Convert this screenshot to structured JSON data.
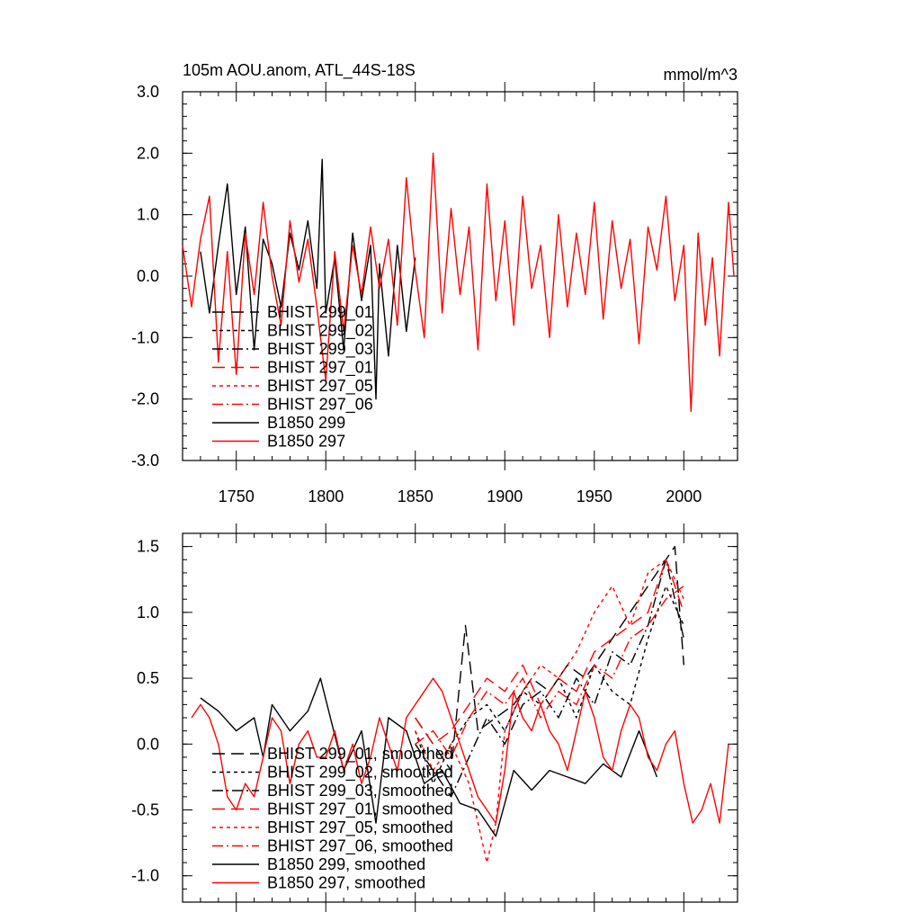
{
  "figure": {
    "title_left": "105m AOU.anom, ATL_44S-18S",
    "title_right": "mmol/m^3"
  },
  "styles": {
    "BHIST 299_01": {
      "color": "#000000",
      "dash": "long"
    },
    "BHIST 299_02": {
      "color": "#000000",
      "dash": "short"
    },
    "BHIST 299_03": {
      "color": "#000000",
      "dash": "dashdot"
    },
    "BHIST 297_01": {
      "color": "#ff0000",
      "dash": "long"
    },
    "BHIST 297_05": {
      "color": "#ff0000",
      "dash": "short"
    },
    "BHIST 297_06": {
      "color": "#ff0000",
      "dash": "dashdot"
    },
    "B1850 299": {
      "color": "#000000",
      "dash": "solid"
    },
    "B1850 297": {
      "color": "#ff0000",
      "dash": "solid"
    }
  },
  "chart_data": [
    {
      "type": "line",
      "title": "105m AOU.anom, ATL_44S-18S",
      "units": "mmol/m^3",
      "xlim": [
        1720,
        2030
      ],
      "ylim": [
        -3.0,
        3.0
      ],
      "xticks": [
        1750,
        1800,
        1850,
        1900,
        1950,
        2000
      ],
      "xtick_labels": [
        "1750",
        "1800",
        "1850",
        "1900",
        "1950",
        "2000"
      ],
      "yticks": [
        -3,
        -2,
        -1,
        0,
        1,
        2,
        3
      ],
      "ytick_labels": [
        "-3.0",
        "-2.0",
        "-1.0",
        "0.0",
        "1.0",
        "2.0",
        "3.0"
      ],
      "legend": [
        "BHIST 299_01",
        "BHIST 299_02",
        "BHIST 299_03",
        "BHIST 297_01",
        "BHIST 297_05",
        "BHIST 297_06",
        "B1850 299",
        "B1850 297"
      ],
      "series": [
        {
          "name": "B1850 299",
          "x": [
            1730,
            1735,
            1740,
            1745,
            1750,
            1755,
            1760,
            1765,
            1770,
            1775,
            1780,
            1785,
            1790,
            1795,
            1798,
            1800,
            1805,
            1810,
            1815,
            1820,
            1825,
            1828,
            1830,
            1835,
            1840,
            1845,
            1850
          ],
          "values": [
            0.4,
            -0.6,
            0.5,
            1.5,
            -0.3,
            0.8,
            -1.2,
            0.6,
            0.2,
            -0.5,
            0.7,
            0.1,
            0.9,
            -0.2,
            1.9,
            -0.6,
            0.3,
            -1.2,
            0.7,
            -0.4,
            0.5,
            -2.0,
            0.2,
            -1.3,
            0.5,
            -0.9,
            0.3
          ]
        },
        {
          "name": "B1850 297",
          "x": [
            1720,
            1725,
            1730,
            1735,
            1740,
            1745,
            1750,
            1755,
            1760,
            1765,
            1770,
            1775,
            1780,
            1785,
            1790,
            1795,
            1800,
            1805,
            1810,
            1815,
            1820,
            1825,
            1830,
            1835,
            1840,
            1845,
            1850,
            1855,
            1860,
            1865,
            1870,
            1875,
            1880,
            1885,
            1890,
            1895,
            1900,
            1905,
            1910,
            1915,
            1920,
            1925,
            1930,
            1935,
            1940,
            1945,
            1950,
            1955,
            1960,
            1965,
            1970,
            1975,
            1980,
            1985,
            1990,
            1995,
            2000,
            2004,
            2008,
            2012,
            2016,
            2020,
            2025,
            2028
          ],
          "values": [
            0.5,
            -0.5,
            0.6,
            1.3,
            -1.4,
            0.4,
            -1.6,
            0.7,
            -0.3,
            1.2,
            0.0,
            -0.8,
            0.9,
            -0.1,
            0.6,
            -0.5,
            -1.7,
            0.4,
            -0.9,
            0.5,
            -0.3,
            0.8,
            -0.2,
            0.6,
            -0.8,
            1.6,
            0.1,
            -1.0,
            2.0,
            -0.6,
            1.1,
            -0.3,
            0.8,
            -1.2,
            1.5,
            -0.4,
            0.9,
            -0.8,
            1.3,
            -0.2,
            0.5,
            -1.0,
            1.0,
            -0.5,
            0.7,
            -0.3,
            1.2,
            -0.7,
            0.9,
            -0.2,
            0.6,
            -1.1,
            0.8,
            0.1,
            1.3,
            -0.4,
            0.5,
            -2.2,
            0.7,
            -0.8,
            0.3,
            -1.3,
            1.2,
            0.0
          ]
        }
      ]
    },
    {
      "type": "line",
      "xlim": [
        1720,
        2030
      ],
      "ylim": [
        -1.2,
        1.6
      ],
      "xticks": [
        1750,
        1800,
        1850,
        1900,
        1950,
        2000
      ],
      "yticks": [
        -1.0,
        -0.5,
        0.0,
        0.5,
        1.0,
        1.5
      ],
      "ytick_labels": [
        "-1.0",
        "-0.5",
        "0.0",
        "0.5",
        "1.0",
        "1.5"
      ],
      "legend": [
        "BHIST 299_01, smoothed",
        "BHIST 299_02, smoothed",
        "BHIST 299_03, smoothed",
        "BHIST 297_01, smoothed",
        "BHIST 297_05, smoothed",
        "BHIST 297_06, smoothed",
        "B1850 299, smoothed",
        "B1850 297, smoothed"
      ],
      "series": [
        {
          "name": "BHIST 299_01, smoothed",
          "x": [
            1850,
            1860,
            1870,
            1878,
            1885,
            1895,
            1905,
            1915,
            1925,
            1935,
            1945,
            1955,
            1965,
            1975,
            1985,
            1995,
            2000
          ],
          "values": [
            0.2,
            0.0,
            -0.2,
            0.9,
            0.1,
            0.2,
            0.3,
            0.5,
            0.4,
            0.6,
            0.5,
            0.7,
            0.9,
            1.1,
            1.3,
            1.5,
            0.6
          ]
        },
        {
          "name": "BHIST 299_02, smoothed",
          "x": [
            1850,
            1860,
            1870,
            1880,
            1890,
            1900,
            1910,
            1920,
            1930,
            1940,
            1950,
            1960,
            1970,
            1980,
            1990,
            2000
          ],
          "values": [
            0.1,
            -0.3,
            0.0,
            0.2,
            0.3,
            0.1,
            0.4,
            0.3,
            0.5,
            0.2,
            0.6,
            0.4,
            0.3,
            0.8,
            1.2,
            0.9
          ]
        },
        {
          "name": "BHIST 299_03, smoothed",
          "x": [
            1850,
            1860,
            1870,
            1880,
            1890,
            1900,
            1910,
            1920,
            1930,
            1940,
            1950,
            1960,
            1970,
            1980,
            1990,
            2000
          ],
          "values": [
            0.0,
            -0.2,
            -0.4,
            -0.1,
            0.2,
            0.0,
            0.3,
            0.4,
            0.2,
            0.5,
            0.3,
            0.7,
            0.6,
            0.9,
            1.4,
            0.8
          ]
        },
        {
          "name": "BHIST 297_01, smoothed",
          "x": [
            1850,
            1860,
            1870,
            1880,
            1890,
            1900,
            1910,
            1920,
            1930,
            1940,
            1950,
            1960,
            1970,
            1980,
            1990,
            2000
          ],
          "values": [
            0.2,
            0.0,
            0.1,
            0.3,
            0.5,
            0.4,
            0.6,
            0.3,
            0.5,
            0.4,
            0.7,
            0.8,
            0.9,
            1.0,
            1.4,
            1.0
          ]
        },
        {
          "name": "BHIST 297_05, smoothed",
          "x": [
            1850,
            1860,
            1870,
            1880,
            1890,
            1895,
            1900,
            1910,
            1920,
            1930,
            1940,
            1950,
            1960,
            1970,
            1980,
            1990,
            2000
          ],
          "values": [
            0.1,
            -0.2,
            0.0,
            -0.3,
            -0.9,
            -0.6,
            0.1,
            0.4,
            0.6,
            0.5,
            0.7,
            1.0,
            1.2,
            0.9,
            1.3,
            1.4,
            1.1
          ]
        },
        {
          "name": "BHIST 297_06, smoothed",
          "x": [
            1850,
            1860,
            1870,
            1880,
            1890,
            1900,
            1910,
            1920,
            1930,
            1940,
            1950,
            1960,
            1970,
            1980,
            1990,
            2000
          ],
          "values": [
            0.0,
            0.1,
            -0.1,
            0.2,
            0.4,
            0.3,
            0.5,
            0.2,
            0.4,
            0.3,
            0.6,
            0.5,
            0.8,
            0.9,
            1.1,
            1.2
          ]
        },
        {
          "name": "B1850 299, smoothed",
          "x": [
            1730,
            1740,
            1750,
            1760,
            1765,
            1770,
            1780,
            1790,
            1797,
            1810,
            1820,
            1828,
            1835,
            1845,
            1855,
            1865,
            1875,
            1885,
            1895,
            1905,
            1915,
            1925,
            1935,
            1945,
            1955,
            1965,
            1975,
            1985
          ],
          "values": [
            0.35,
            0.25,
            0.1,
            0.2,
            -0.1,
            0.3,
            0.1,
            0.25,
            0.5,
            -0.2,
            0.1,
            -0.6,
            0.2,
            0.1,
            -0.3,
            -0.2,
            -0.45,
            -0.5,
            -0.7,
            -0.2,
            -0.35,
            -0.2,
            -0.25,
            -0.3,
            -0.15,
            -0.25,
            0.1,
            -0.25
          ]
        },
        {
          "name": "B1850 297, smoothed",
          "x": [
            1725,
            1730,
            1735,
            1740,
            1745,
            1750,
            1755,
            1760,
            1765,
            1770,
            1775,
            1780,
            1785,
            1790,
            1795,
            1800,
            1805,
            1810,
            1815,
            1820,
            1825,
            1830,
            1835,
            1840,
            1845,
            1850,
            1855,
            1860,
            1865,
            1870,
            1875,
            1880,
            1885,
            1890,
            1895,
            1900,
            1905,
            1910,
            1915,
            1920,
            1925,
            1930,
            1935,
            1940,
            1945,
            1950,
            1955,
            1960,
            1965,
            1970,
            1975,
            1980,
            1985,
            1990,
            1995,
            2000,
            2005,
            2010,
            2015,
            2020,
            2025
          ],
          "values": [
            0.2,
            0.3,
            0.2,
            0.0,
            -0.4,
            -0.5,
            -0.3,
            -0.4,
            -0.1,
            0.2,
            0.1,
            -0.3,
            0.0,
            0.1,
            -0.1,
            -0.1,
            0.1,
            -0.2,
            0.0,
            -0.3,
            -0.1,
            0.2,
            0.0,
            -0.2,
            0.2,
            0.3,
            0.4,
            0.5,
            0.4,
            0.2,
            0.0,
            -0.2,
            -0.4,
            -0.5,
            -0.6,
            -0.2,
            0.4,
            0.2,
            0.1,
            0.3,
            0.1,
            0.0,
            -0.2,
            0.1,
            0.4,
            0.2,
            -0.1,
            -0.2,
            0.1,
            0.3,
            0.2,
            -0.1,
            -0.2,
            0.0,
            0.1,
            -0.3,
            -0.6,
            -0.5,
            -0.3,
            -0.6,
            0.0
          ]
        }
      ]
    }
  ]
}
